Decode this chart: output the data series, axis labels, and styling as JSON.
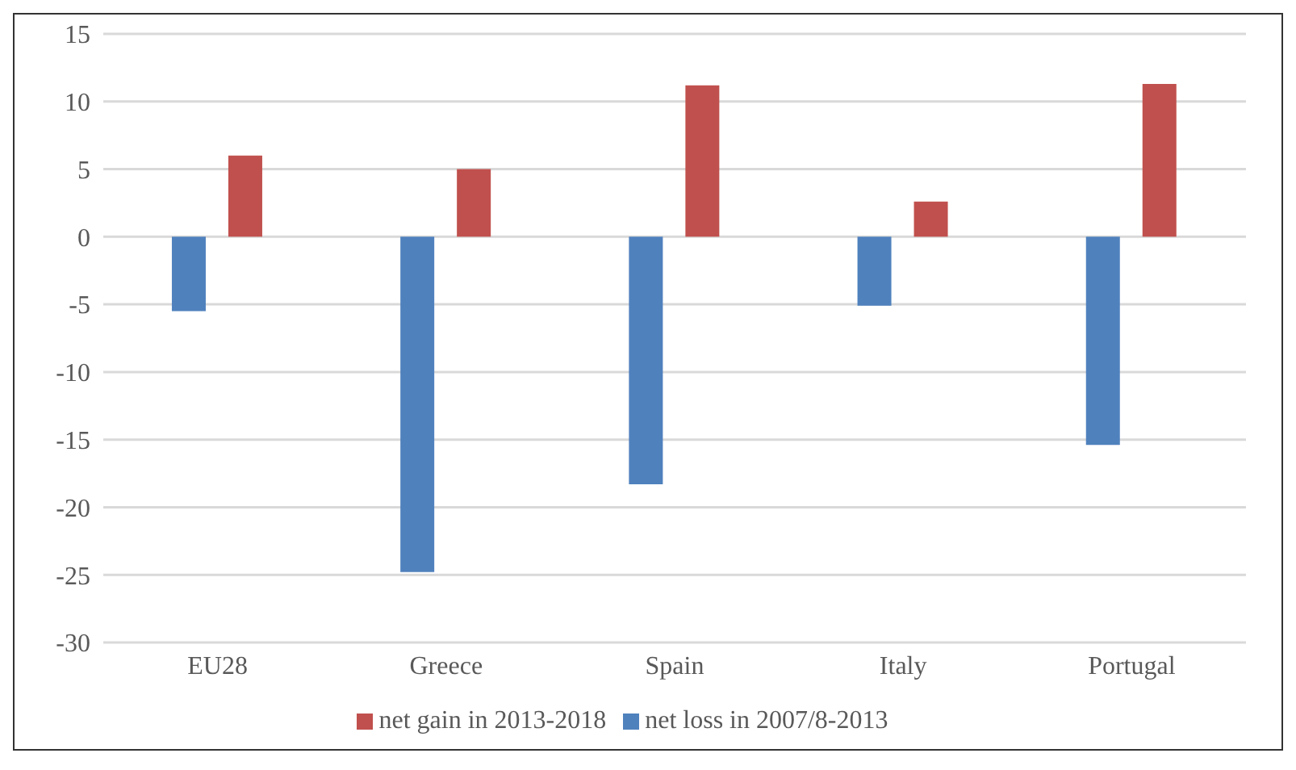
{
  "chart_data": {
    "type": "bar",
    "categories": [
      "EU28",
      "Greece",
      "Spain",
      "Italy",
      "Portugal"
    ],
    "series": [
      {
        "name": "net loss in 2007/8-2013",
        "color": "#4f81bd",
        "values": [
          -5.5,
          -24.8,
          -18.3,
          -5.1,
          -15.4
        ]
      },
      {
        "name": "net gain in 2013-2018",
        "color": "#c0504d",
        "values": [
          6.0,
          5.0,
          11.2,
          2.6,
          11.3
        ]
      }
    ],
    "ylim": [
      -30,
      15
    ],
    "yticks": [
      -30,
      -25,
      -20,
      -15,
      -10,
      -5,
      0,
      5,
      10,
      15
    ],
    "grid": "y",
    "legend": "bottom"
  }
}
